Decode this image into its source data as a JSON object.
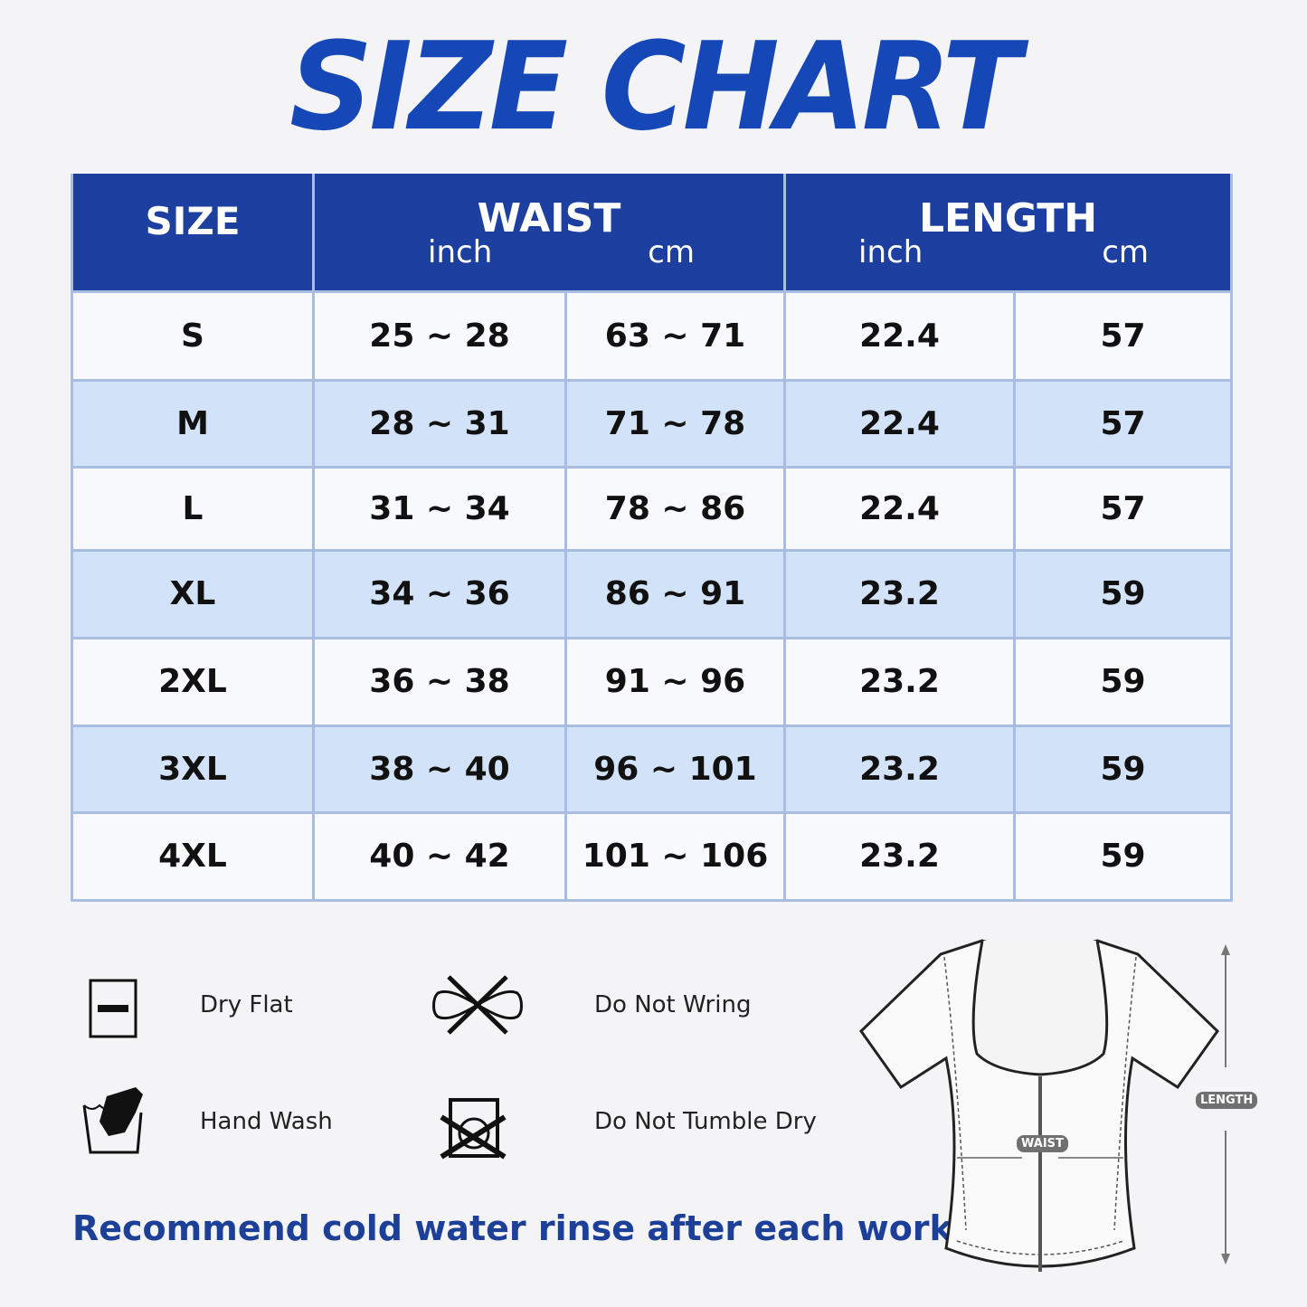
{
  "title": "SIZE CHART",
  "table": {
    "headers": {
      "size": "SIZE",
      "waist": "WAIST",
      "length": "LENGTH",
      "inch": "inch",
      "cm": "cm"
    },
    "rows": [
      {
        "size": "S",
        "waist_inch": "25 ~ 28",
        "waist_cm": "63 ~ 71",
        "length_inch": "22.4",
        "length_cm": "57"
      },
      {
        "size": "M",
        "waist_inch": "28 ~ 31",
        "waist_cm": "71 ~ 78",
        "length_inch": "22.4",
        "length_cm": "57"
      },
      {
        "size": "L",
        "waist_inch": "31 ~ 34",
        "waist_cm": "78 ~ 86",
        "length_inch": "22.4",
        "length_cm": "57"
      },
      {
        "size": "XL",
        "waist_inch": "34 ~ 36",
        "waist_cm": "86 ~ 91",
        "length_inch": "23.2",
        "length_cm": "59"
      },
      {
        "size": "2XL",
        "waist_inch": "36 ~ 38",
        "waist_cm": "91 ~ 96",
        "length_inch": "23.2",
        "length_cm": "59"
      },
      {
        "size": "3XL",
        "waist_inch": "38 ~ 40",
        "waist_cm": "96 ~ 101",
        "length_inch": "23.2",
        "length_cm": "59"
      },
      {
        "size": "4XL",
        "waist_inch": "40 ~ 42",
        "waist_cm": "101 ~ 106",
        "length_inch": "23.2",
        "length_cm": "59"
      }
    ]
  },
  "care": [
    {
      "icon": "dry-flat-icon",
      "label": "Dry Flat"
    },
    {
      "icon": "do-not-wring-icon",
      "label": "Do Not Wring"
    },
    {
      "icon": "hand-wash-icon",
      "label": "Hand Wash"
    },
    {
      "icon": "do-not-tumble-dry-icon",
      "label": "Do Not Tumble Dry"
    }
  ],
  "note": "Recommend cold water rinse after each workout.",
  "diagram": {
    "waist_label": "WAIST",
    "length_label": "LENGTH"
  },
  "colors": {
    "header": "#1d40a0",
    "title": "#1548b6",
    "row_alt": "#d2e2f8",
    "note": "#1c3f97"
  }
}
